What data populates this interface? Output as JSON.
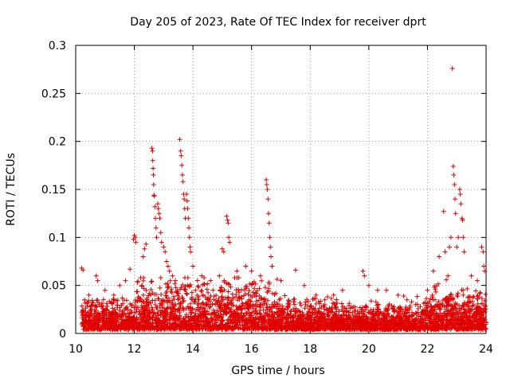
{
  "chart_data": {
    "type": "scatter",
    "title": "Day 205 of 2023, Rate Of TEC Index for receiver dprt",
    "xlabel": "GPS time / hours",
    "ylabel": "ROTI / TECUs",
    "xlim": [
      10,
      24
    ],
    "ylim": [
      0,
      0.3
    ],
    "x_ticks": [
      "10",
      "12",
      "14",
      "16",
      "18",
      "20",
      "22",
      "24"
    ],
    "y_ticks": [
      "0",
      "0.05",
      "0.1",
      "0.15",
      "0.2",
      "0.25",
      "0.3"
    ],
    "grid": true,
    "marker": "+",
    "color": "#e00000",
    "series": [
      {
        "name": "ROTI",
        "points": [
          [
            10.2,
            0.068
          ],
          [
            10.25,
            0.066
          ],
          [
            10.3,
            0.035
          ],
          [
            10.45,
            0.04
          ],
          [
            10.7,
            0.06
          ],
          [
            10.75,
            0.055
          ],
          [
            11.0,
            0.045
          ],
          [
            11.3,
            0.04
          ],
          [
            11.5,
            0.05
          ],
          [
            11.7,
            0.055
          ],
          [
            11.85,
            0.067
          ],
          [
            11.97,
            0.098
          ],
          [
            12.0,
            0.102
          ],
          [
            12.03,
            0.1
          ],
          [
            12.05,
            0.095
          ],
          [
            12.3,
            0.08
          ],
          [
            12.35,
            0.088
          ],
          [
            12.4,
            0.093
          ],
          [
            12.6,
            0.193
          ],
          [
            12.62,
            0.19
          ],
          [
            12.63,
            0.18
          ],
          [
            12.64,
            0.172
          ],
          [
            12.65,
            0.165
          ],
          [
            12.66,
            0.155
          ],
          [
            12.67,
            0.144
          ],
          [
            12.68,
            0.143
          ],
          [
            12.7,
            0.132
          ],
          [
            12.72,
            0.12
          ],
          [
            12.74,
            0.11
          ],
          [
            12.76,
            0.1
          ],
          [
            12.8,
            0.135
          ],
          [
            12.82,
            0.13
          ],
          [
            12.85,
            0.125
          ],
          [
            12.87,
            0.12
          ],
          [
            12.9,
            0.105
          ],
          [
            12.93,
            0.095
          ],
          [
            13.0,
            0.09
          ],
          [
            13.05,
            0.085
          ],
          [
            13.1,
            0.075
          ],
          [
            13.15,
            0.07
          ],
          [
            13.2,
            0.065
          ],
          [
            13.3,
            0.06
          ],
          [
            13.4,
            0.055
          ],
          [
            13.55,
            0.202
          ],
          [
            13.58,
            0.19
          ],
          [
            13.6,
            0.185
          ],
          [
            13.62,
            0.175
          ],
          [
            13.64,
            0.165
          ],
          [
            13.66,
            0.158
          ],
          [
            13.68,
            0.145
          ],
          [
            13.7,
            0.14
          ],
          [
            13.72,
            0.13
          ],
          [
            13.74,
            0.12
          ],
          [
            13.78,
            0.145
          ],
          [
            13.8,
            0.138
          ],
          [
            13.82,
            0.13
          ],
          [
            13.84,
            0.12
          ],
          [
            13.86,
            0.11
          ],
          [
            13.88,
            0.1
          ],
          [
            13.9,
            0.09
          ],
          [
            13.92,
            0.085
          ],
          [
            14.0,
            0.07
          ],
          [
            14.3,
            0.06
          ],
          [
            14.6,
            0.055
          ],
          [
            14.9,
            0.06
          ],
          [
            15.0,
            0.088
          ],
          [
            15.05,
            0.085
          ],
          [
            15.15,
            0.122
          ],
          [
            15.18,
            0.118
          ],
          [
            15.2,
            0.115
          ],
          [
            15.22,
            0.1
          ],
          [
            15.25,
            0.095
          ],
          [
            15.5,
            0.065
          ],
          [
            15.8,
            0.07
          ],
          [
            16.0,
            0.065
          ],
          [
            16.3,
            0.06
          ],
          [
            16.5,
            0.16
          ],
          [
            16.52,
            0.155
          ],
          [
            16.54,
            0.15
          ],
          [
            16.56,
            0.14
          ],
          [
            16.58,
            0.125
          ],
          [
            16.6,
            0.115
          ],
          [
            16.62,
            0.1
          ],
          [
            16.64,
            0.09
          ],
          [
            16.66,
            0.08
          ],
          [
            16.7,
            0.07
          ],
          [
            17.0,
            0.055
          ],
          [
            17.5,
            0.066
          ],
          [
            17.8,
            0.05
          ],
          [
            18.2,
            0.04
          ],
          [
            18.5,
            0.035
          ],
          [
            18.8,
            0.04
          ],
          [
            19.1,
            0.045
          ],
          [
            19.8,
            0.065
          ],
          [
            19.85,
            0.06
          ],
          [
            20.0,
            0.05
          ],
          [
            20.3,
            0.045
          ],
          [
            20.6,
            0.045
          ],
          [
            21.0,
            0.04
          ],
          [
            21.3,
            0.035
          ],
          [
            21.6,
            0.03
          ],
          [
            22.0,
            0.045
          ],
          [
            22.2,
            0.065
          ],
          [
            22.4,
            0.08
          ],
          [
            22.55,
            0.127
          ],
          [
            22.6,
            0.085
          ],
          [
            22.7,
            0.06
          ],
          [
            22.75,
            0.09
          ],
          [
            22.8,
            0.1
          ],
          [
            22.85,
            0.276
          ],
          [
            22.88,
            0.174
          ],
          [
            22.9,
            0.165
          ],
          [
            22.92,
            0.155
          ],
          [
            22.94,
            0.14
          ],
          [
            22.96,
            0.125
          ],
          [
            23.0,
            0.09
          ],
          [
            23.05,
            0.1
          ],
          [
            23.1,
            0.15
          ],
          [
            23.12,
            0.145
          ],
          [
            23.14,
            0.135
          ],
          [
            23.18,
            0.12
          ],
          [
            23.2,
            0.118
          ],
          [
            23.22,
            0.1
          ],
          [
            23.25,
            0.085
          ],
          [
            23.5,
            0.06
          ],
          [
            23.7,
            0.055
          ],
          [
            23.85,
            0.09
          ],
          [
            23.9,
            0.085
          ],
          [
            23.92,
            0.07
          ],
          [
            23.95,
            0.065
          ]
        ]
      }
    ]
  }
}
